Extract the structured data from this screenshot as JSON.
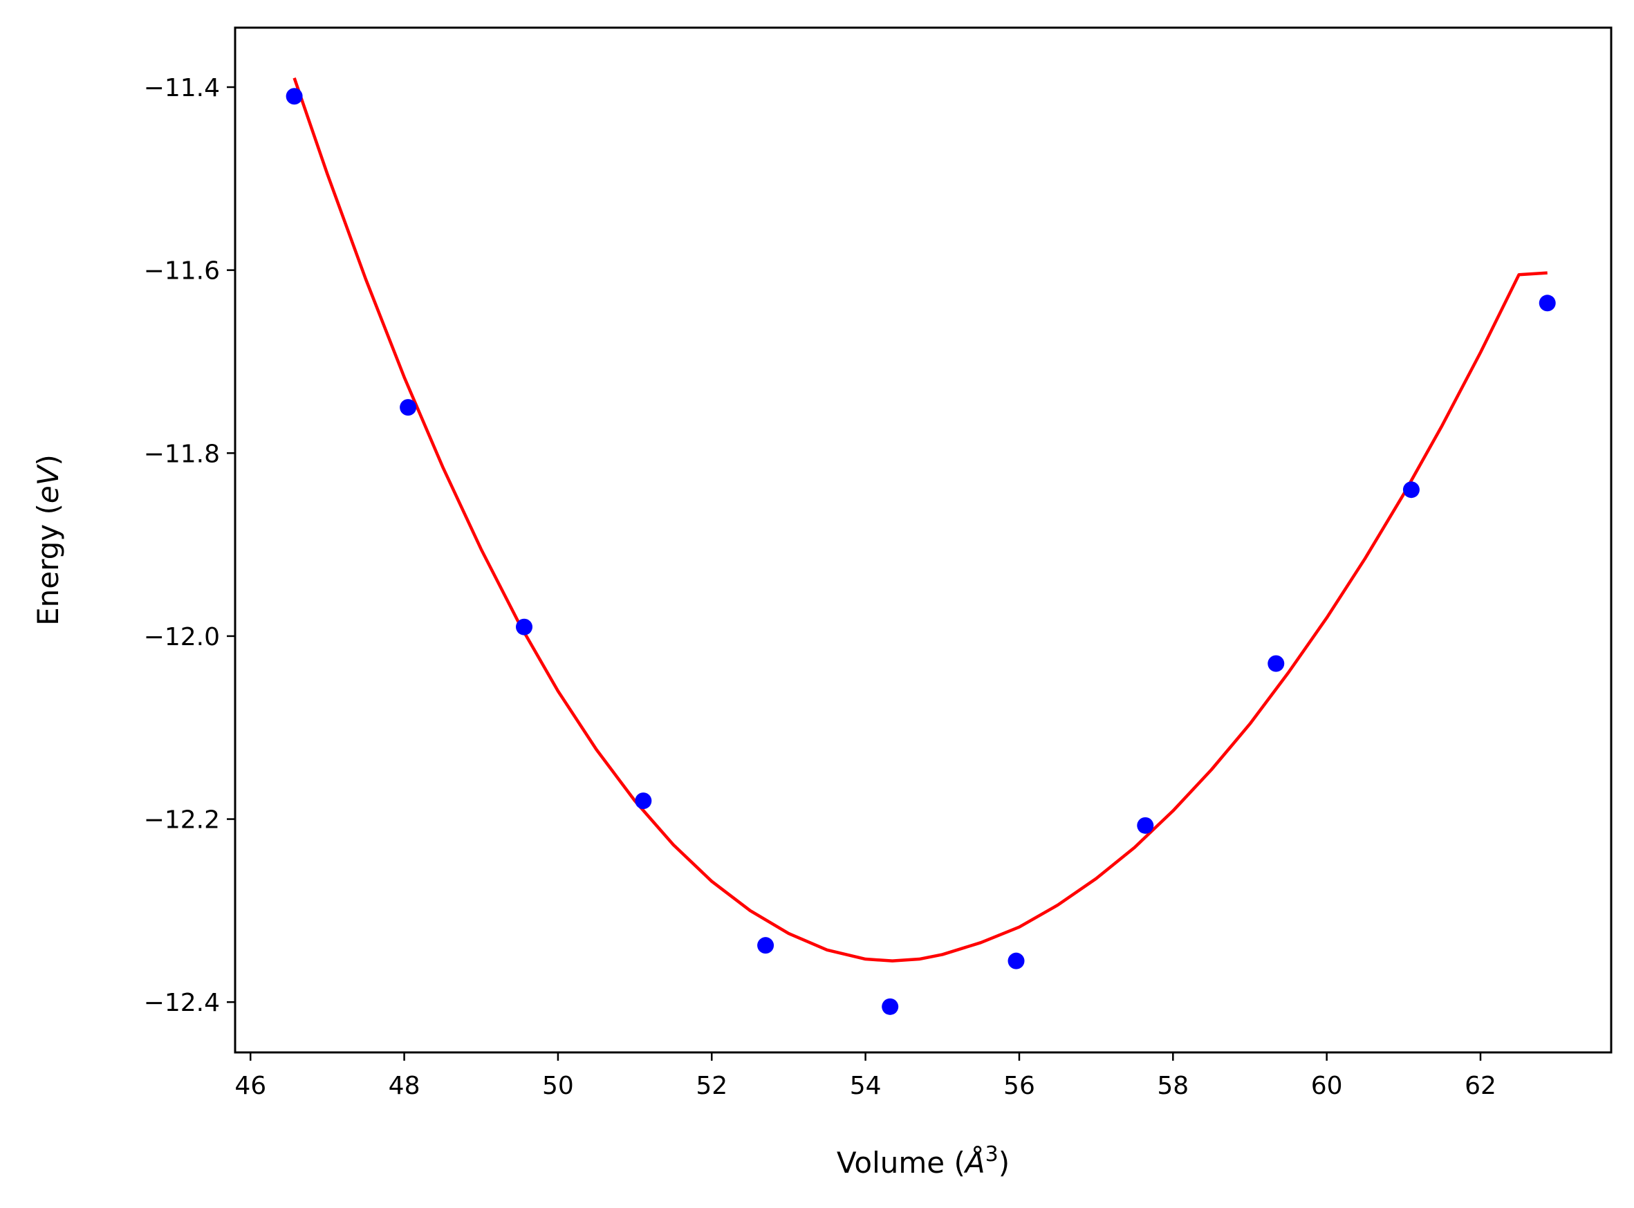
{
  "chart_data": {
    "type": "scatter",
    "xlabel": "Volume (Å³)",
    "xlabel_parts": [
      "Volume (",
      "Å",
      "3",
      ")"
    ],
    "ylabel": "Energy (eV)",
    "ylabel_parts": [
      "Energy (",
      "eV",
      ")"
    ],
    "xlim": [
      45.8,
      63.7
    ],
    "ylim": [
      -12.455,
      -11.335
    ],
    "xticks": [
      46,
      48,
      50,
      52,
      54,
      56,
      58,
      60,
      62
    ],
    "xtick_labels": [
      "46",
      "48",
      "50",
      "52",
      "54",
      "56",
      "58",
      "60",
      "62"
    ],
    "yticks": [
      -11.4,
      -11.6,
      -11.8,
      -12.0,
      -12.2,
      -12.4
    ],
    "ytick_labels": [
      "−11.4",
      "−11.6",
      "−11.8",
      "−12.0",
      "−12.2",
      "−12.4"
    ],
    "grid": false,
    "colors": {
      "points": "#0000ff",
      "fit": "#ff0000"
    },
    "series": [
      {
        "kind": "scatter",
        "x": [
          46.57,
          48.05,
          49.56,
          51.11,
          52.7,
          54.32,
          55.96,
          57.64,
          59.34,
          61.1,
          62.87
        ],
        "y": [
          -11.41,
          -11.75,
          -11.99,
          -12.18,
          -12.338,
          -12.405,
          -12.355,
          -12.207,
          -12.03,
          -11.84,
          -11.636
        ]
      },
      {
        "kind": "line",
        "x": [
          46.57,
          47.0,
          47.5,
          48.0,
          48.5,
          49.0,
          49.5,
          50.0,
          50.5,
          51.0,
          51.5,
          52.0,
          52.5,
          53.0,
          53.5,
          54.0,
          54.35,
          54.7,
          55.0,
          55.5,
          56.0,
          56.5,
          57.0,
          57.5,
          58.0,
          58.5,
          59.0,
          59.5,
          60.0,
          60.5,
          61.0,
          61.5,
          62.0,
          62.5,
          62.87
        ],
        "y": [
          -11.39,
          -11.495,
          -11.61,
          -11.717,
          -11.815,
          -11.905,
          -11.987,
          -12.06,
          -12.124,
          -12.18,
          -12.228,
          -12.268,
          -12.3,
          -12.325,
          -12.343,
          -12.353,
          -12.355,
          -12.353,
          -12.348,
          -12.335,
          -12.318,
          -12.294,
          -12.265,
          -12.231,
          -12.191,
          -12.146,
          -12.096,
          -12.04,
          -11.98,
          -11.915,
          -11.845,
          -11.77,
          -11.69,
          -11.605,
          -11.603
        ]
      }
    ]
  }
}
